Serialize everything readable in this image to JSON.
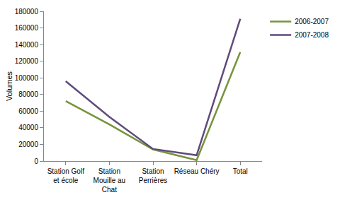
{
  "chart_data": {
    "type": "line",
    "y_label": "Volumes",
    "categories": [
      "Station Golf et école",
      "Station Mouille au Chat",
      "Station Perrières",
      "Réseau Chéry",
      "Total"
    ],
    "series": [
      {
        "name": "2006-2007",
        "color": "#77933c",
        "values": [
          72000,
          44000,
          14000,
          1000,
          131000
        ]
      },
      {
        "name": "2007-2008",
        "color": "#604a7b",
        "values": [
          96000,
          53000,
          14500,
          7000,
          171000
        ]
      }
    ],
    "ylim": [
      0,
      180000
    ],
    "yticks": [
      0,
      20000,
      40000,
      60000,
      80000,
      100000,
      120000,
      140000,
      160000,
      180000
    ],
    "grid": false,
    "legend": "top-right"
  }
}
